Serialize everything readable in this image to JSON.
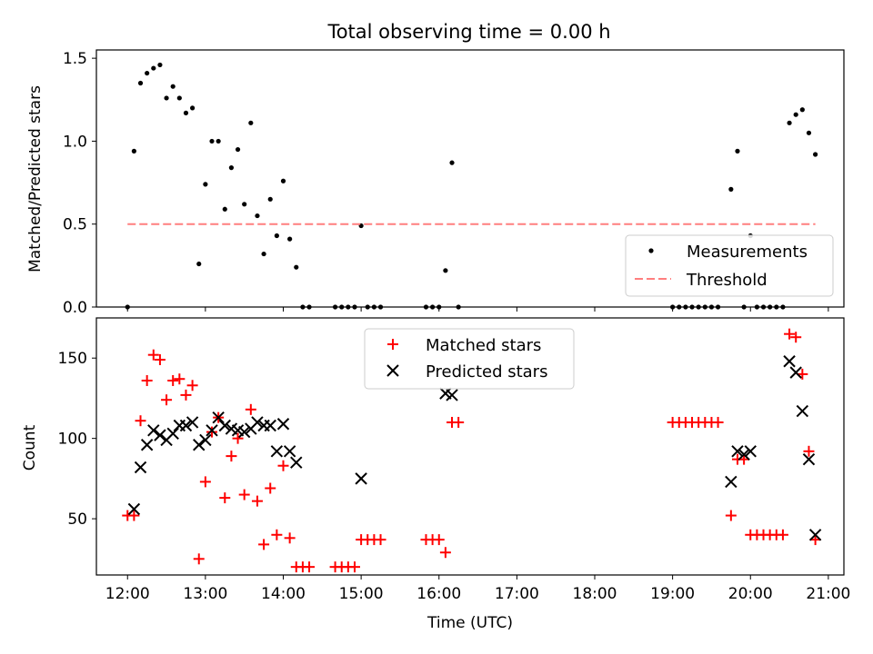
{
  "chart_data": [
    {
      "type": "scatter",
      "title": "Total observing time = 0.00 h",
      "xlabel": "",
      "ylabel": "Matched/Predicted stars",
      "x_unit": "Time (UTC)",
      "xlim": [
        "11:36",
        "21:12"
      ],
      "ylim": [
        0,
        1.55
      ],
      "x_ticks": [
        "12:00",
        "13:00",
        "14:00",
        "15:00",
        "16:00",
        "17:00",
        "18:00",
        "19:00",
        "20:00",
        "21:00"
      ],
      "x_ticklabels_visible": false,
      "y_ticks": [
        0,
        0.5,
        1.0,
        1.5
      ],
      "y_ticklabels": [
        "0.0",
        "0.5",
        "1.0",
        "1.5"
      ],
      "legend": {
        "placement": "lower-right",
        "entries": [
          "Measurements",
          "Threshold"
        ]
      },
      "grid": false,
      "series": [
        {
          "name": "Measurements",
          "marker": "dot",
          "color": "#000000",
          "points": [
            [
              "12:00",
              0.0
            ],
            [
              "12:05",
              0.94
            ],
            [
              "12:10",
              1.35
            ],
            [
              "12:15",
              1.41
            ],
            [
              "12:20",
              1.44
            ],
            [
              "12:25",
              1.46
            ],
            [
              "12:30",
              1.26
            ],
            [
              "12:35",
              1.33
            ],
            [
              "12:40",
              1.26
            ],
            [
              "12:45",
              1.17
            ],
            [
              "12:50",
              1.2
            ],
            [
              "12:55",
              0.26
            ],
            [
              "13:00",
              0.74
            ],
            [
              "13:05",
              1.0
            ],
            [
              "13:10",
              1.0
            ],
            [
              "13:15",
              0.59
            ],
            [
              "13:20",
              0.84
            ],
            [
              "13:25",
              0.95
            ],
            [
              "13:30",
              0.62
            ],
            [
              "13:35",
              1.11
            ],
            [
              "13:40",
              0.55
            ],
            [
              "13:45",
              0.32
            ],
            [
              "13:50",
              0.65
            ],
            [
              "13:55",
              0.43
            ],
            [
              "14:00",
              0.76
            ],
            [
              "14:05",
              0.41
            ],
            [
              "14:10",
              0.24
            ],
            [
              "14:15",
              0.0
            ],
            [
              "14:20",
              0.0
            ],
            [
              "14:40",
              0.0
            ],
            [
              "14:45",
              0.0
            ],
            [
              "14:50",
              0.0
            ],
            [
              "14:55",
              0.0
            ],
            [
              "15:00",
              0.49
            ],
            [
              "15:05",
              0.0
            ],
            [
              "15:10",
              0.0
            ],
            [
              "15:15",
              0.0
            ],
            [
              "15:50",
              0.0
            ],
            [
              "15:55",
              0.0
            ],
            [
              "16:00",
              0.0
            ],
            [
              "16:05",
              0.22
            ],
            [
              "16:10",
              0.87
            ],
            [
              "16:15",
              0.0
            ],
            [
              "19:00",
              0.0
            ],
            [
              "19:05",
              0.0
            ],
            [
              "19:10",
              0.0
            ],
            [
              "19:15",
              0.0
            ],
            [
              "19:20",
              0.0
            ],
            [
              "19:25",
              0.0
            ],
            [
              "19:30",
              0.0
            ],
            [
              "19:35",
              0.0
            ],
            [
              "19:45",
              0.71
            ],
            [
              "19:50",
              0.94
            ],
            [
              "19:55",
              0.0
            ],
            [
              "20:00",
              0.43
            ],
            [
              "20:05",
              0.0
            ],
            [
              "20:10",
              0.0
            ],
            [
              "20:15",
              0.0
            ],
            [
              "20:20",
              0.0
            ],
            [
              "20:25",
              0.0
            ],
            [
              "20:30",
              1.11
            ],
            [
              "20:35",
              1.16
            ],
            [
              "20:40",
              1.19
            ],
            [
              "20:45",
              1.05
            ],
            [
              "20:50",
              0.92
            ]
          ]
        },
        {
          "name": "Threshold",
          "marker": "dashed-line",
          "color": "#ff7f7f",
          "points": [
            [
              "12:00",
              0.5
            ],
            [
              "20:50",
              0.5
            ]
          ]
        }
      ]
    },
    {
      "type": "scatter",
      "title": "",
      "xlabel": "Time (UTC)",
      "ylabel": "Count",
      "xlim": [
        "11:36",
        "21:12"
      ],
      "ylim": [
        15,
        175
      ],
      "x_ticks": [
        "12:00",
        "13:00",
        "14:00",
        "15:00",
        "16:00",
        "17:00",
        "18:00",
        "19:00",
        "20:00",
        "21:00"
      ],
      "x_ticklabels": [
        "12:00",
        "13:00",
        "14:00",
        "15:00",
        "16:00",
        "17:00",
        "18:00",
        "19:00",
        "20:00",
        "21:00"
      ],
      "y_ticks": [
        50,
        100,
        150
      ],
      "y_ticklabels": [
        "50",
        "100",
        "150"
      ],
      "legend": {
        "placement": "top-center",
        "entries": [
          "Matched stars",
          "Predicted stars"
        ]
      },
      "grid": false,
      "series": [
        {
          "name": "Matched stars",
          "marker": "plus",
          "color": "#ff0000",
          "points": [
            [
              "12:00",
              52
            ],
            [
              "12:05",
              52
            ],
            [
              "12:10",
              111
            ],
            [
              "12:15",
              136
            ],
            [
              "12:20",
              152
            ],
            [
              "12:25",
              149
            ],
            [
              "12:30",
              124
            ],
            [
              "12:35",
              136
            ],
            [
              "12:40",
              137
            ],
            [
              "12:45",
              127
            ],
            [
              "12:50",
              133
            ],
            [
              "12:55",
              25
            ],
            [
              "13:00",
              73
            ],
            [
              "13:05",
              104
            ],
            [
              "13:10",
              113
            ],
            [
              "13:15",
              63
            ],
            [
              "13:20",
              89
            ],
            [
              "13:25",
              100
            ],
            [
              "13:30",
              65
            ],
            [
              "13:35",
              118
            ],
            [
              "13:40",
              61
            ],
            [
              "13:45",
              34
            ],
            [
              "13:50",
              69
            ],
            [
              "13:55",
              40
            ],
            [
              "14:00",
              83
            ],
            [
              "14:05",
              38
            ],
            [
              "14:10",
              20
            ],
            [
              "14:15",
              20
            ],
            [
              "14:20",
              20
            ],
            [
              "14:40",
              20
            ],
            [
              "14:45",
              20
            ],
            [
              "14:50",
              20
            ],
            [
              "14:55",
              20
            ],
            [
              "15:00",
              37
            ],
            [
              "15:05",
              37
            ],
            [
              "15:10",
              37
            ],
            [
              "15:15",
              37
            ],
            [
              "15:50",
              37
            ],
            [
              "15:55",
              37
            ],
            [
              "16:00",
              37
            ],
            [
              "16:05",
              29
            ],
            [
              "16:10",
              110
            ],
            [
              "16:15",
              110
            ],
            [
              "19:00",
              110
            ],
            [
              "19:05",
              110
            ],
            [
              "19:10",
              110
            ],
            [
              "19:15",
              110
            ],
            [
              "19:20",
              110
            ],
            [
              "19:25",
              110
            ],
            [
              "19:30",
              110
            ],
            [
              "19:35",
              110
            ],
            [
              "19:45",
              52
            ],
            [
              "19:50",
              87
            ],
            [
              "19:55",
              87
            ],
            [
              "20:00",
              40
            ],
            [
              "20:05",
              40
            ],
            [
              "20:10",
              40
            ],
            [
              "20:15",
              40
            ],
            [
              "20:20",
              40
            ],
            [
              "20:25",
              40
            ],
            [
              "20:30",
              165
            ],
            [
              "20:35",
              163
            ],
            [
              "20:40",
              140
            ],
            [
              "20:45",
              92
            ],
            [
              "20:50",
              37
            ]
          ]
        },
        {
          "name": "Predicted stars",
          "marker": "x",
          "color": "#000000",
          "points": [
            [
              "12:05",
              56
            ],
            [
              "12:10",
              82
            ],
            [
              "12:15",
              96
            ],
            [
              "12:20",
              105
            ],
            [
              "12:25",
              102
            ],
            [
              "12:30",
              99
            ],
            [
              "12:35",
              103
            ],
            [
              "12:40",
              108
            ],
            [
              "12:45",
              108
            ],
            [
              "12:50",
              110
            ],
            [
              "12:55",
              96
            ],
            [
              "13:00",
              99
            ],
            [
              "13:05",
              105
            ],
            [
              "13:10",
              113
            ],
            [
              "13:15",
              108
            ],
            [
              "13:20",
              106
            ],
            [
              "13:25",
              105
            ],
            [
              "13:30",
              104
            ],
            [
              "13:35",
              106
            ],
            [
              "13:40",
              110
            ],
            [
              "13:45",
              108
            ],
            [
              "13:50",
              108
            ],
            [
              "13:55",
              92
            ],
            [
              "14:00",
              109
            ],
            [
              "14:05",
              92
            ],
            [
              "14:10",
              85
            ],
            [
              "15:00",
              75
            ],
            [
              "16:05",
              128
            ],
            [
              "16:10",
              127
            ],
            [
              "19:45",
              73
            ],
            [
              "19:50",
              92
            ],
            [
              "19:55",
              90
            ],
            [
              "20:00",
              92
            ],
            [
              "20:30",
              148
            ],
            [
              "20:35",
              141
            ],
            [
              "20:40",
              117
            ],
            [
              "20:45",
              87
            ],
            [
              "20:50",
              40
            ]
          ]
        }
      ]
    }
  ]
}
